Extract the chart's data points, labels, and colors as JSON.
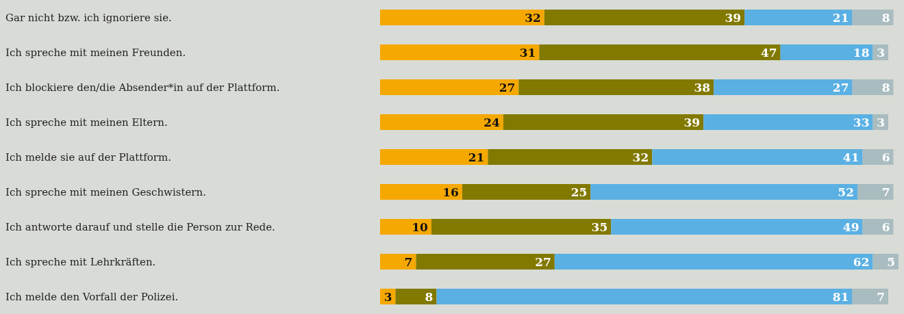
{
  "chart_data": {
    "type": "bar",
    "orientation": "horizontal",
    "stacked": true,
    "data_labels": true,
    "categories": [
      "Gar nicht bzw. ich ignoriere sie.",
      "Ich spreche mit meinen Freunden.",
      "Ich blockiere den/die Absender*in auf der Plattform.",
      "Ich spreche mit meinen Eltern.",
      "Ich melde sie auf der Plattform.",
      "Ich spreche mit meinen Geschwistern.",
      "Ich antworte darauf und stelle die Person zur Rede.",
      "Ich spreche mit Lehrkräften.",
      "Ich melde den Vorfall der Polizei."
    ],
    "series": [
      {
        "color": "#f5a800",
        "values": [
          32,
          31,
          27,
          24,
          21,
          16,
          10,
          7,
          3
        ]
      },
      {
        "color": "#827900",
        "values": [
          39,
          47,
          38,
          39,
          32,
          25,
          35,
          27,
          8
        ]
      },
      {
        "color": "#5ab0e3",
        "values": [
          21,
          18,
          27,
          33,
          41,
          52,
          49,
          62,
          81
        ]
      },
      {
        "color": "#a9bcc0",
        "values": [
          8,
          3,
          8,
          3,
          6,
          7,
          6,
          5,
          7
        ]
      }
    ]
  }
}
